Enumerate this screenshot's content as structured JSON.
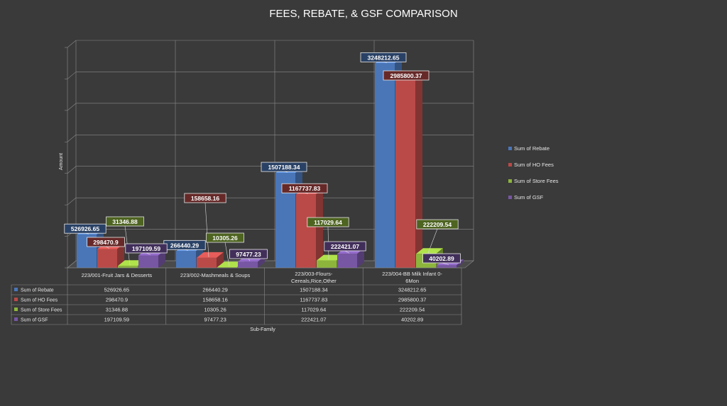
{
  "chart_data": {
    "type": "bar",
    "title": "FEES, REBATE, & GSF COMPARISON",
    "xlabel": "Sub-Family",
    "ylabel": "Amount",
    "ylim": [
      0,
      3500000
    ],
    "grid": true,
    "legend_position": "right",
    "categories": [
      "223/001-Fruit Jars & Desserts",
      "223/002-Mashmeals & Soups",
      "223/003-Flours-Cereals,Rice,Other",
      "223/004-BB Milk Infant 0-6Mon"
    ],
    "category_display": [
      [
        "223/001-Fruit Jars & Desserts"
      ],
      [
        "223/002-Mashmeals & Soups"
      ],
      [
        "223/003-Flours-",
        "Cereals,Rice,Other"
      ],
      [
        "223/004-BB Milk Infant 0-",
        "6Mon"
      ]
    ],
    "series": [
      {
        "name": "Sum of Rebate",
        "color": "#4a76b8",
        "values": [
          526926.65,
          266440.29,
          1507188.34,
          3248212.65
        ],
        "labels": [
          "526926.65",
          "266440.29",
          "1507188.34",
          "3248212.65"
        ]
      },
      {
        "name": "Sum of HO Fees",
        "color": "#b94a48",
        "values": [
          298470.9,
          158658.16,
          1167737.83,
          2985800.37
        ],
        "labels": [
          "298470.9",
          "158658.16",
          "1167737.83",
          "2985800.37"
        ]
      },
      {
        "name": "Sum of Store Fees",
        "color": "#8db53c",
        "values": [
          31346.88,
          10305.26,
          117029.64,
          222209.54
        ],
        "labels": [
          "31346.88",
          "10305.26",
          "117029.64",
          "222209.54"
        ]
      },
      {
        "name": "Sum of GSF",
        "color": "#7756a3",
        "values": [
          197109.59,
          97477.23,
          222421.07,
          40202.89
        ],
        "labels": [
          "197109.59",
          "97477.23",
          "222421.07",
          "40202.89"
        ]
      }
    ]
  }
}
